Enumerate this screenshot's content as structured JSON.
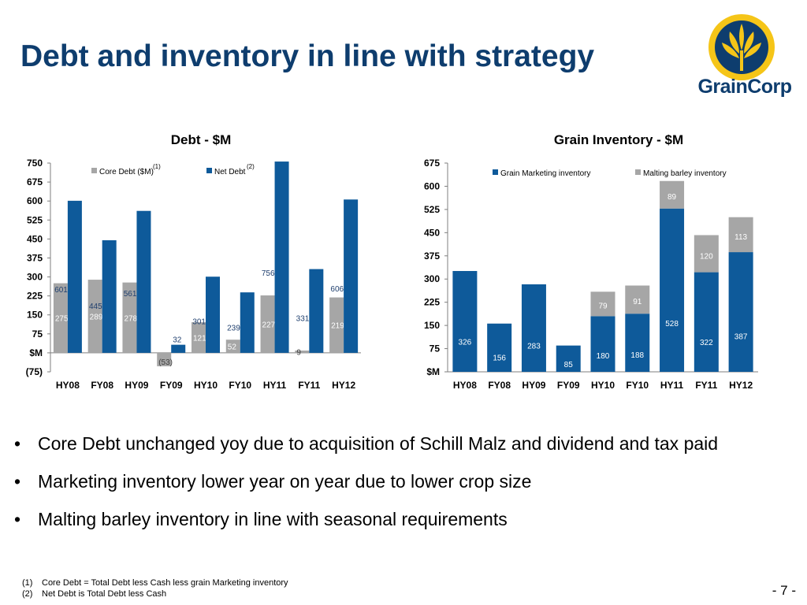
{
  "title": "Debt and inventory in line with strategy",
  "logo": {
    "text": "GrainCorp",
    "icon": "graincorp-wheat-logo"
  },
  "colors": {
    "navy": "#0e5a9a",
    "grey": "#a6a6a6",
    "title": "#0e3d6e",
    "gold": "#f5c518"
  },
  "chart_data": [
    {
      "type": "bar",
      "title": "Debt - $M",
      "categories": [
        "HY08",
        "FY08",
        "HY09",
        "FY09",
        "HY10",
        "FY10",
        "HY11",
        "FY11",
        "HY12"
      ],
      "series": [
        {
          "name": "Core Debt ($M)",
          "footnote": "(1)",
          "color": "#a6a6a6",
          "values": [
            275,
            289,
            278,
            -53,
            121,
            52,
            227,
            9,
            219
          ],
          "labels": [
            "275",
            "289",
            "278",
            "(53)",
            "121",
            "52",
            "227",
            "9",
            "219"
          ]
        },
        {
          "name": "Net Debt",
          "footnote": "(2)",
          "color": "#0e5a9a",
          "values": [
            601,
            445,
            561,
            32,
            301,
            239,
            756,
            331,
            606
          ],
          "labels": [
            "601",
            "445",
            "561",
            "32",
            "301",
            "239",
            "756",
            "331",
            "606"
          ]
        }
      ],
      "ylim": [
        -75,
        750
      ],
      "yticks": [
        -75,
        0,
        75,
        150,
        225,
        300,
        375,
        450,
        525,
        600,
        675,
        750
      ],
      "yticklabels": [
        "(75)",
        "$M",
        "75",
        "150",
        "225",
        "300",
        "375",
        "450",
        "525",
        "600",
        "675",
        "750"
      ],
      "legend": "top"
    },
    {
      "type": "bar",
      "stacked": true,
      "title": "Grain Inventory - $M",
      "categories": [
        "HY08",
        "FY08",
        "HY09",
        "FY09",
        "HY10",
        "FY10",
        "HY11",
        "FY11",
        "HY12"
      ],
      "series": [
        {
          "name": "Grain Marketing inventory",
          "color": "#0e5a9a",
          "values": [
            326,
            156,
            283,
            85,
            180,
            188,
            528,
            322,
            387
          ],
          "labels": [
            "326",
            "156",
            "283",
            "85",
            "180",
            "188",
            "528",
            "322",
            "387"
          ]
        },
        {
          "name": "Malting barley inventory",
          "color": "#a6a6a6",
          "values": [
            null,
            null,
            null,
            null,
            79,
            91,
            89,
            120,
            113
          ],
          "labels": [
            "",
            "",
            "",
            "",
            "79",
            "91",
            "89",
            "120",
            "113"
          ]
        }
      ],
      "ylim": [
        0,
        675
      ],
      "yticks": [
        0,
        75,
        150,
        225,
        300,
        375,
        450,
        525,
        600,
        675
      ],
      "yticklabels": [
        "$M",
        "75",
        "150",
        "225",
        "300",
        "375",
        "450",
        "525",
        "600",
        "675"
      ],
      "legend": "top"
    }
  ],
  "bullets": [
    "Core Debt unchanged yoy due to acquisition of Schill Malz and dividend and tax paid",
    "Marketing inventory lower year on year due to lower crop size",
    "Malting barley inventory in line with seasonal requirements"
  ],
  "bullet_symbol": "•",
  "footnotes": [
    {
      "num": "(1)",
      "text": "Core Debt = Total Debt less Cash less grain Marketing inventory"
    },
    {
      "num": "(2)",
      "text": "Net Debt is Total Debt less Cash"
    }
  ],
  "page_number": "- 7 -"
}
